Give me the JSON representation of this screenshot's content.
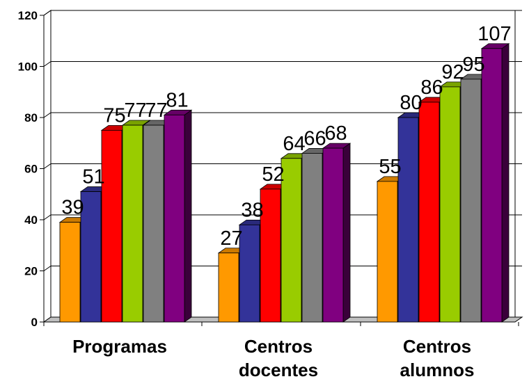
{
  "chart_data": {
    "type": "bar",
    "style": "3d-clustered",
    "categories": [
      [
        "Programas"
      ],
      [
        "Centros",
        "docentes"
      ],
      [
        "Centros",
        "alumnos"
      ]
    ],
    "series": [
      {
        "color": "#FF9900",
        "values": [
          39,
          27,
          55
        ]
      },
      {
        "color": "#333399",
        "values": [
          51,
          38,
          80
        ]
      },
      {
        "color": "#FF0000",
        "values": [
          75,
          52,
          86
        ]
      },
      {
        "color": "#99CC00",
        "values": [
          77,
          64,
          92
        ]
      },
      {
        "color": "#808080",
        "values": [
          77,
          66,
          95
        ]
      },
      {
        "color": "#800080",
        "values": [
          81,
          68,
          107
        ]
      }
    ],
    "ylim": [
      0,
      120
    ],
    "yticks": [
      0,
      20,
      40,
      60,
      80,
      100,
      120
    ],
    "grid": true,
    "legend": "none"
  }
}
